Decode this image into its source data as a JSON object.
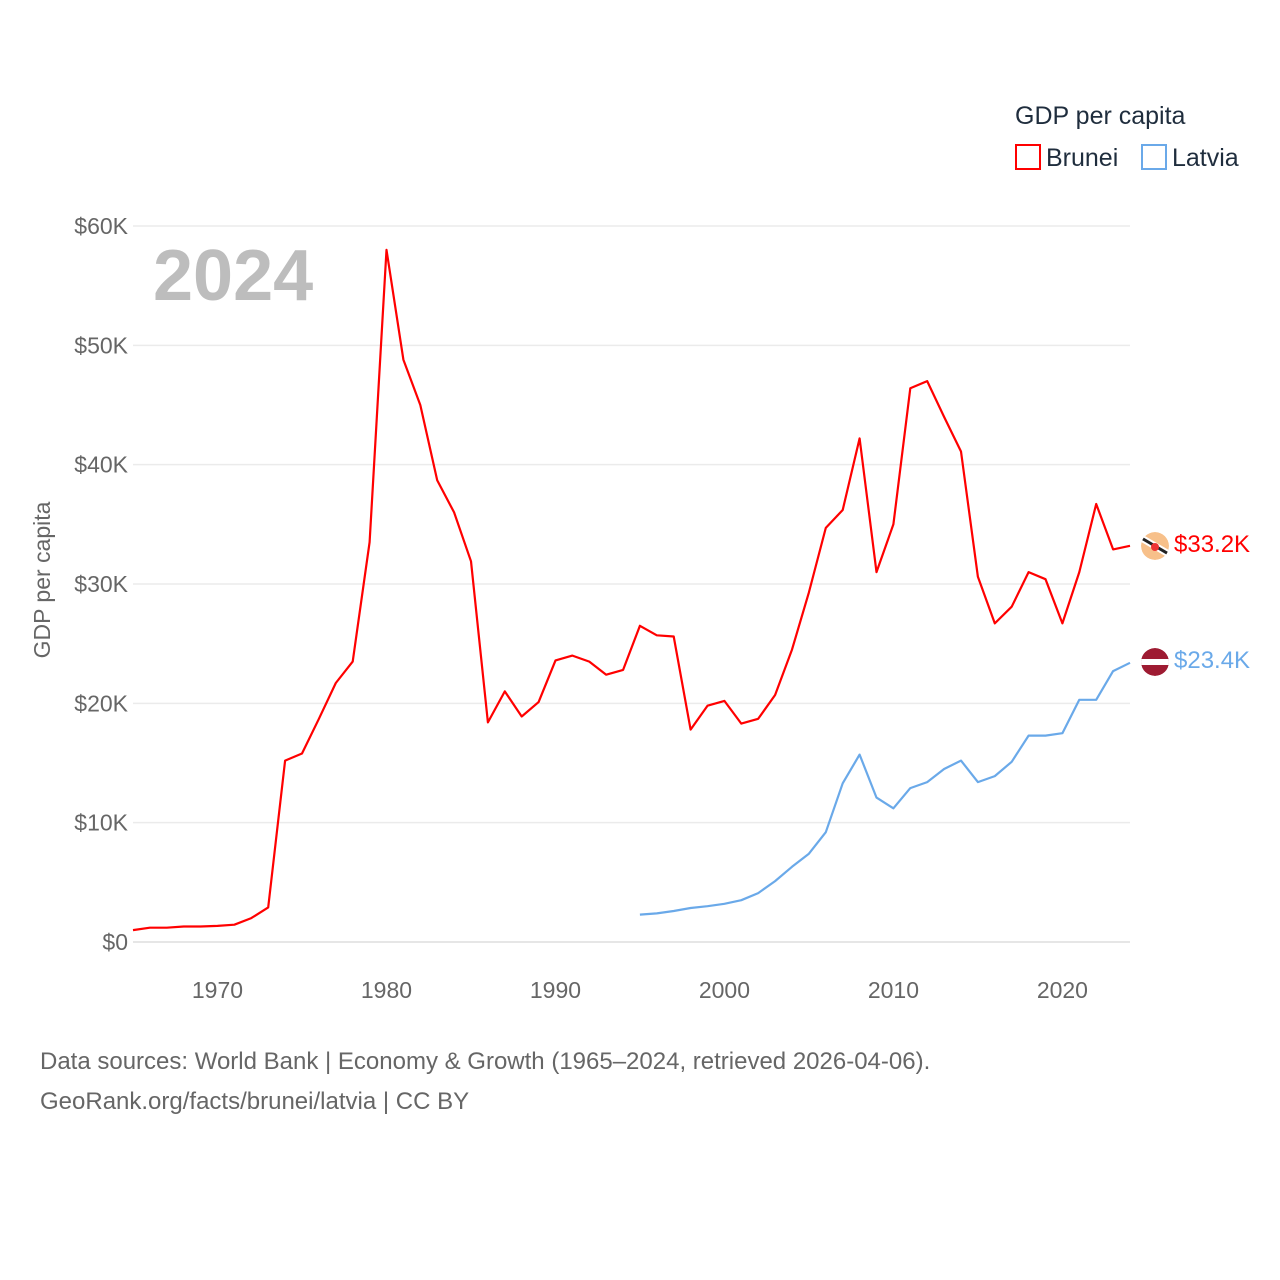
{
  "chart_data": {
    "type": "line",
    "title": "",
    "year_label": "2024",
    "ylabel": "GDP per capita",
    "xlabel": "",
    "xlim": [
      1965,
      2024
    ],
    "ylim": [
      0,
      60000
    ],
    "x_ticks": [
      "1970",
      "1980",
      "1990",
      "2000",
      "2010",
      "2020"
    ],
    "x_tick_values": [
      1970,
      1980,
      1990,
      2000,
      2010,
      2020
    ],
    "y_ticks": [
      "$0",
      "$10K",
      "$20K",
      "$30K",
      "$40K",
      "$50K",
      "$60K"
    ],
    "y_tick_values": [
      0,
      10000,
      20000,
      30000,
      40000,
      50000,
      60000
    ],
    "grid": true,
    "legend": {
      "title": "GDP per capita",
      "placement": "top-right"
    },
    "series": [
      {
        "name": "Brunei",
        "color": "#ff0000",
        "end_label": "$33.2K",
        "x_start": 1965,
        "values": [
          1000,
          1200,
          1200,
          1300,
          1300,
          1350,
          1450,
          2000,
          2900,
          15200,
          15800,
          18700,
          21700,
          23500,
          33500,
          58000,
          48800,
          45000,
          38700,
          36000,
          31900,
          18400,
          21000,
          18900,
          20100,
          23600,
          24000,
          23500,
          22400,
          22800,
          26500,
          25700,
          25600,
          17800,
          19800,
          20200,
          18300,
          18700,
          20700,
          24500,
          29300,
          34700,
          36200,
          42200,
          31000,
          35000,
          46400,
          47000,
          44000,
          41100,
          30600,
          26700,
          28100,
          31000,
          30400,
          26700,
          31000,
          36700,
          32900,
          33200
        ]
      },
      {
        "name": "Latvia",
        "color": "#6aa9e9",
        "end_label": "$23.4K",
        "x_start": 1995,
        "values": [
          2300,
          2400,
          2600,
          2850,
          3000,
          3200,
          3500,
          4100,
          5100,
          6300,
          7400,
          9200,
          13300,
          15700,
          12100,
          11200,
          12900,
          13400,
          14500,
          15200,
          13400,
          13900,
          15100,
          17300,
          17300,
          17500,
          20300,
          20300,
          22700,
          23400
        ]
      }
    ]
  },
  "source": {
    "line1": "Data sources: World Bank | Economy & Growth (1965–2024, retrieved 2026-04-06).",
    "line2": "GeoRank.org/facts/brunei/latvia | CC BY"
  }
}
